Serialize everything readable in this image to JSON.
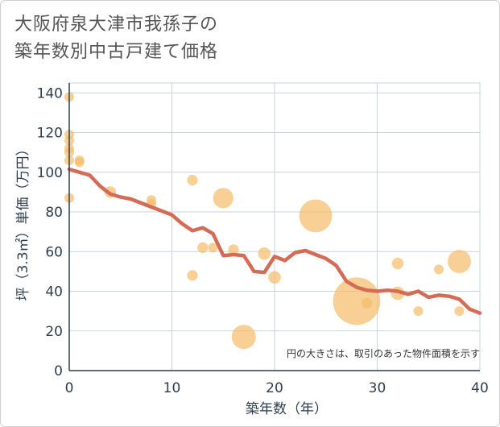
{
  "chart_data": {
    "type": "scatter",
    "title_lines": [
      "大阪府泉大津市我孫子の",
      "築年数別中古戸建て価格"
    ],
    "xlabel": "築年数（年）",
    "ylabel": "坪（3.3㎡）単価（万円）",
    "xlim": [
      0,
      40
    ],
    "ylim": [
      0,
      145
    ],
    "xticks": [
      0,
      10,
      20,
      30,
      40
    ],
    "yticks": [
      0,
      20,
      40,
      60,
      80,
      100,
      120,
      140
    ],
    "grid": true,
    "note": "円の大きさは、取引のあった物件面積を示す",
    "colors": {
      "bubble": "#f5bd6b",
      "line": "#d66b55",
      "grid": "#c9d3de",
      "axis": "#2f3e4f"
    },
    "points": [
      {
        "x": 0,
        "y": 138,
        "size": 1
      },
      {
        "x": 0,
        "y": 119,
        "size": 1
      },
      {
        "x": 0,
        "y": 116,
        "size": 1
      },
      {
        "x": 0,
        "y": 112,
        "size": 1
      },
      {
        "x": 0,
        "y": 110,
        "size": 1
      },
      {
        "x": 0,
        "y": 106,
        "size": 1
      },
      {
        "x": 0,
        "y": 87,
        "size": 1
      },
      {
        "x": 1,
        "y": 106,
        "size": 1
      },
      {
        "x": 1,
        "y": 105,
        "size": 1
      },
      {
        "x": 4,
        "y": 90,
        "size": 1.2
      },
      {
        "x": 8,
        "y": 86,
        "size": 1
      },
      {
        "x": 8,
        "y": 84,
        "size": 1
      },
      {
        "x": 12,
        "y": 96,
        "size": 1.1
      },
      {
        "x": 12,
        "y": 48,
        "size": 1.1
      },
      {
        "x": 13,
        "y": 62,
        "size": 1.1
      },
      {
        "x": 14,
        "y": 62,
        "size": 1
      },
      {
        "x": 15,
        "y": 87,
        "size": 2.1
      },
      {
        "x": 16,
        "y": 61,
        "size": 1.1
      },
      {
        "x": 17,
        "y": 17,
        "size": 2.5
      },
      {
        "x": 19,
        "y": 59,
        "size": 1.3
      },
      {
        "x": 20,
        "y": 47,
        "size": 1.3
      },
      {
        "x": 24,
        "y": 78,
        "size": 3.4
      },
      {
        "x": 28,
        "y": 35,
        "size": 4.9
      },
      {
        "x": 29,
        "y": 34,
        "size": 1.1
      },
      {
        "x": 32,
        "y": 54,
        "size": 1.2
      },
      {
        "x": 32,
        "y": 39,
        "size": 1.4
      },
      {
        "x": 34,
        "y": 30,
        "size": 1
      },
      {
        "x": 36,
        "y": 51,
        "size": 1
      },
      {
        "x": 38,
        "y": 55,
        "size": 2.4
      },
      {
        "x": 38,
        "y": 30,
        "size": 1
      }
    ],
    "trend": {
      "x": [
        0,
        1,
        2,
        3,
        4,
        5,
        6,
        7,
        8,
        9,
        10,
        11,
        12,
        13,
        14,
        15,
        16,
        17,
        18,
        19,
        20,
        21,
        22,
        23,
        24,
        25,
        26,
        27,
        28,
        29,
        30,
        31,
        32,
        33,
        34,
        35,
        36,
        37,
        38,
        39,
        40
      ],
      "y": [
        101.5,
        100,
        98.5,
        93,
        89,
        87.5,
        86.5,
        84.5,
        82.5,
        80.5,
        78.5,
        74,
        70.5,
        72,
        69,
        58,
        58.5,
        58,
        50,
        49.5,
        57.5,
        55.5,
        59.5,
        60.5,
        58.5,
        56.5,
        53,
        45,
        42,
        40.5,
        40,
        40.5,
        40,
        38.5,
        40,
        37,
        38,
        37.5,
        36,
        31,
        29
      ]
    }
  }
}
